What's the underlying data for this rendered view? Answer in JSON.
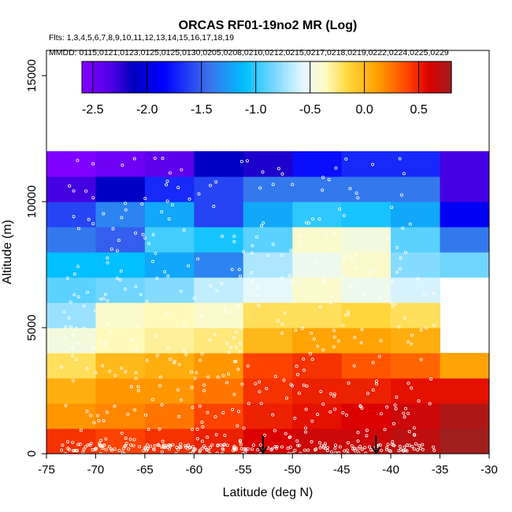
{
  "chart_data": {
    "type": "heatmap",
    "title": "ORCAS RF01-19no2 MR (Log)",
    "flights_label": "Flts: 1,3,4,5,6,7,8,9,10,11,12,13,14,15,16,17,18,19",
    "mmdd_label": "MMDD: 0115,0121,0123,0125,0125,0130,0205,0208,0210,0212,0215,0217,0218,0219,0222,0224,0225,0229",
    "xlabel": "Latitude (deg N)",
    "ylabel": "Altitude (m)",
    "xlim": [
      -75,
      -30
    ],
    "ylim": [
      0,
      16000
    ],
    "x_ticks": [
      -75,
      -70,
      -65,
      -60,
      -55,
      -50,
      -45,
      -40,
      -35,
      -30
    ],
    "x_tick_labels": [
      "-75",
      "-70",
      "-65",
      "-60",
      "-55",
      "-50",
      "-45",
      "-40",
      "-35",
      "-30"
    ],
    "y_ticks": [
      0,
      5000,
      10000,
      15000
    ],
    "y_tick_labels": [
      "0",
      "5000",
      "10000",
      "15000"
    ],
    "colorbar": {
      "range": [
        -2.6,
        0.8
      ],
      "ticks": [
        -2.5,
        -2.0,
        -1.5,
        -1.0,
        -0.5,
        0.0,
        0.5
      ],
      "tick_labels": [
        "-2.5",
        "-2.0",
        "-1.5",
        "-1.0",
        "-0.5",
        "0.0",
        "0.5"
      ]
    },
    "grid": {
      "lat_edges": [
        -75,
        -70,
        -65,
        -60,
        -55,
        -50,
        -45,
        -40,
        -35,
        -30
      ],
      "alt_edges": [
        0,
        1000,
        2000,
        3000,
        4000,
        5000,
        6000,
        7000,
        8000,
        9000,
        10000,
        11000,
        12000
      ],
      "values": [
        [
          0.45,
          0.4,
          0.45,
          0.5,
          0.6,
          0.65,
          0.65,
          0.7,
          0.8
        ],
        [
          0.15,
          0.2,
          0.25,
          0.4,
          0.5,
          0.55,
          0.6,
          0.65,
          0.75
        ],
        [
          0.05,
          0.15,
          0.15,
          0.25,
          0.45,
          0.5,
          0.5,
          0.55,
          0.55
        ],
        [
          -0.2,
          0.0,
          0.05,
          0.15,
          0.4,
          0.45,
          0.35,
          0.3,
          0.1
        ],
        [
          -0.45,
          -0.35,
          -0.3,
          -0.25,
          0.0,
          0.1,
          0.1,
          0.05,
          null
        ],
        [
          -0.75,
          -0.4,
          -0.35,
          -0.4,
          -0.2,
          -0.2,
          -0.15,
          -0.2,
          null
        ],
        [
          -0.9,
          -0.85,
          -0.8,
          -0.65,
          -0.55,
          -0.4,
          -0.5,
          -0.6,
          null
        ],
        [
          -1.1,
          -1.1,
          -1.2,
          -1.35,
          -0.7,
          -0.5,
          -0.4,
          -0.8,
          -0.85
        ],
        [
          -1.4,
          -1.5,
          -0.95,
          -1.05,
          -0.9,
          -0.4,
          -0.45,
          -0.9,
          -1.4
        ],
        [
          -1.6,
          -1.35,
          -1.2,
          -1.6,
          -1.2,
          -1.0,
          -1.05,
          -1.2,
          -1.9
        ],
        [
          -2.3,
          -2.1,
          -1.7,
          -1.6,
          -1.4,
          -1.4,
          -1.4,
          -1.4,
          -2.3
        ],
        [
          -2.6,
          -2.5,
          -2.4,
          -2.1,
          -2.2,
          -1.8,
          -1.7,
          -1.7,
          -2.3
        ]
      ]
    },
    "markers": [
      {
        "label": "arrow",
        "lat": -53.0,
        "alt": 0
      },
      {
        "label": "arrow",
        "lat": -41.5,
        "alt": 0
      }
    ]
  }
}
